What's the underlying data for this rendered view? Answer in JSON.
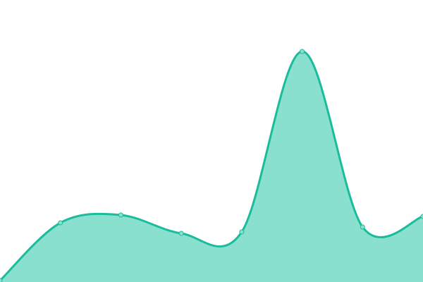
{
  "chart_data": {
    "type": "area",
    "title": "",
    "xlabel": "",
    "ylabel": "",
    "x": [
      0,
      1,
      2,
      3,
      4,
      5,
      6,
      7
    ],
    "values": [
      2,
      84,
      95,
      69,
      71,
      327,
      78,
      93
    ],
    "ylim": [
      0,
      400
    ],
    "grid": false,
    "legend": "none",
    "smooth": true,
    "colors": {
      "line": "#1abc9c",
      "fill": "#89e0cf",
      "marker": "#89e0cf"
    }
  }
}
